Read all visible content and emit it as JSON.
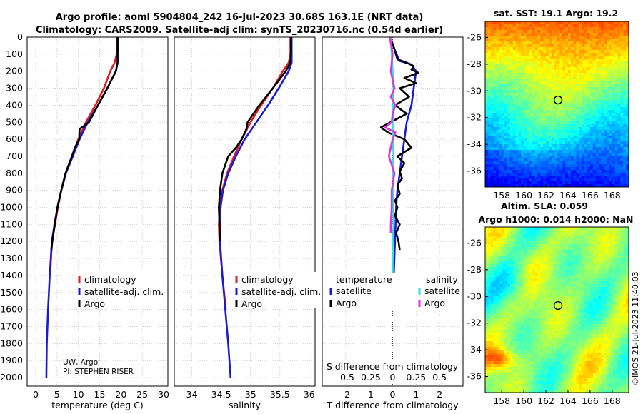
{
  "header": {
    "title_line1": "Argo profile: aoml 5904804_242 16-Jul-2023 30.68S 163.1E (NRT data)",
    "title_line2": "Climatology: CARS2009. Satellite-adj clim: synTS_20230716.nc (0.54d earlier)"
  },
  "credits": {
    "line1": "UW, Argo",
    "line2": "PI: STEPHEN RISER"
  },
  "imos_stamp": "©IMOS 21-Jul-2023 11:40:03",
  "colors": {
    "climatology": "#e41a1c",
    "satellite": "#1a1ad6",
    "argo": "#000000",
    "sal_satellite": "#33e0e0",
    "sal_argo": "#e033e0"
  },
  "chart_data": [
    {
      "type": "line",
      "name": "temperature-profile",
      "xlabel": "temperature (deg C)",
      "xlim": [
        -2,
        31
      ],
      "xticks": [
        0,
        5,
        10,
        15,
        20,
        25,
        30
      ],
      "ylim": [
        2050,
        0
      ],
      "yticks": [
        0,
        100,
        200,
        300,
        400,
        500,
        600,
        700,
        800,
        900,
        1000,
        1100,
        1200,
        1300,
        1400,
        1500,
        1600,
        1700,
        1800,
        1900,
        2000
      ],
      "legend": [
        "climatology",
        "satellite-adj. clim.",
        "Argo"
      ],
      "series": [
        {
          "name": "climatology",
          "x": [
            19.0,
            19.0,
            18.5,
            17.5,
            16.0,
            14.0,
            11.8,
            10.0,
            8.5,
            7.0,
            6.0,
            5.2,
            4.5,
            3.8,
            3.4
          ],
          "y": [
            0,
            100,
            150,
            200,
            300,
            400,
            500,
            600,
            700,
            800,
            900,
            1000,
            1100,
            1200,
            1400
          ]
        },
        {
          "name": "satellite-adj. clim.",
          "x": [
            19.2,
            19.2,
            19.2,
            18.8,
            16.8,
            14.6,
            12.2,
            10.3,
            8.7,
            7.1,
            6.0,
            5.1,
            4.4,
            3.8,
            3.3,
            2.9,
            2.6,
            2.5
          ],
          "y": [
            0,
            100,
            150,
            200,
            300,
            400,
            500,
            600,
            700,
            800,
            900,
            1000,
            1100,
            1200,
            1400,
            1600,
            1800,
            2000
          ]
        },
        {
          "name": "Argo",
          "x": [
            19.2,
            19.2,
            19.2,
            18.8,
            16.8,
            14.6,
            12.5,
            10.3,
            10.2,
            9.2,
            8.5,
            7.0,
            6.0,
            5.1,
            4.5,
            3.9,
            3.7
          ],
          "y": [
            0,
            100,
            150,
            200,
            300,
            400,
            500,
            540,
            600,
            650,
            700,
            800,
            900,
            1000,
            1100,
            1200,
            1250
          ]
        }
      ]
    },
    {
      "type": "line",
      "name": "salinity-profile",
      "xlabel": "salinity",
      "xlim": [
        33.7,
        36.1
      ],
      "xticks": [
        34,
        34.5,
        35,
        35.5,
        36
      ],
      "ylim": [
        2050,
        0
      ],
      "legend": [
        "climatology",
        "satellite-adj. clim.",
        "Argo"
      ],
      "series": [
        {
          "name": "climatology",
          "x": [
            35.68,
            35.68,
            35.65,
            35.55,
            35.38,
            35.18,
            35.0,
            34.85,
            34.72,
            34.6,
            34.52,
            34.48,
            34.46,
            34.47,
            34.52,
            34.58
          ],
          "y": [
            0,
            100,
            150,
            200,
            300,
            400,
            500,
            600,
            700,
            800,
            900,
            1000,
            1100,
            1200,
            1400,
            1600
          ]
        },
        {
          "name": "satellite-adj. clim.",
          "x": [
            35.7,
            35.7,
            35.7,
            35.65,
            35.48,
            35.3,
            35.1,
            34.9,
            34.75,
            34.62,
            34.53,
            34.49,
            34.48,
            34.48,
            34.52,
            34.57,
            34.62,
            34.66
          ],
          "y": [
            0,
            100,
            150,
            200,
            300,
            400,
            500,
            600,
            700,
            800,
            900,
            1000,
            1100,
            1200,
            1400,
            1600,
            1800,
            2000
          ]
        },
        {
          "name": "Argo",
          "x": [
            35.69,
            35.69,
            35.68,
            35.6,
            35.38,
            35.15,
            34.95,
            34.93,
            34.85,
            34.75,
            34.62,
            34.52,
            34.48,
            34.46,
            34.47,
            34.48
          ],
          "y": [
            0,
            100,
            150,
            200,
            300,
            400,
            500,
            540,
            600,
            650,
            700,
            800,
            900,
            1000,
            1100,
            1200
          ]
        }
      ]
    },
    {
      "type": "line",
      "name": "difference-from-climatology",
      "xlabel": "T difference from climatology",
      "xlim": [
        -3,
        3
      ],
      "xticks": [
        -2,
        -1,
        0,
        1,
        2
      ],
      "xlabel_top": "S difference from climatology",
      "xticks_top": [
        -0.5,
        -0.25,
        0,
        0.25,
        0.5
      ],
      "ylim": [
        2050,
        0
      ],
      "legend_titles": [
        "temperature",
        "salinity"
      ],
      "legend": [
        "satellite",
        "Argo",
        "satellite",
        "Argo"
      ],
      "series": [
        {
          "name": "temperature satellite",
          "x": [
            -0.1,
            0.1,
            0.3,
            0.8,
            1.0,
            0.9,
            0.8,
            0.6,
            0.5,
            0.4,
            0.3,
            0.2,
            0.15,
            0.1,
            0.05
          ],
          "y": [
            0,
            80,
            140,
            160,
            200,
            300,
            400,
            500,
            600,
            700,
            800,
            900,
            1000,
            1200,
            1400
          ]
        },
        {
          "name": "temperature Argo",
          "x": [
            -0.1,
            0.1,
            0.2,
            0.6,
            0.9,
            0.8,
            1.1,
            0.5,
            1.0,
            0.3,
            0.7,
            0.1,
            0.6,
            -0.5,
            -0.2,
            0.5,
            0.8,
            0.2,
            0.5,
            0.3,
            0.4,
            0.2,
            0.3,
            0.1,
            0.2,
            0.1,
            0.3,
            0.15,
            0.25,
            0.3
          ],
          "y": [
            0,
            80,
            130,
            150,
            170,
            190,
            210,
            240,
            270,
            300,
            350,
            400,
            450,
            530,
            560,
            600,
            650,
            700,
            740,
            790,
            830,
            870,
            920,
            960,
            1000,
            1050,
            1100,
            1150,
            1200,
            1250
          ]
        },
        {
          "name": "salinity satellite",
          "x": [
            -0.02,
            0.0,
            0.01,
            0.0,
            0.01,
            0.0,
            0.01,
            0.0,
            0.0
          ],
          "y": [
            0,
            200,
            300,
            500,
            700,
            900,
            1100,
            1300,
            1400
          ]
        },
        {
          "name": "salinity Argo",
          "x": [
            -0.03,
            0.0,
            -0.02,
            0.02,
            -0.02,
            0.03,
            0.0,
            -0.01,
            -0.08,
            0.03,
            0.0,
            -0.04,
            0.02,
            -0.01,
            -0.01,
            -0.02,
            -0.02
          ],
          "y": [
            0,
            100,
            200,
            300,
            350,
            400,
            450,
            500,
            530,
            560,
            600,
            700,
            800,
            900,
            1000,
            1100,
            1150
          ]
        }
      ]
    },
    {
      "type": "heatmap",
      "name": "sat-sst-map",
      "title": "sat. SST: 19.1 Argo: 19.2",
      "xlim": [
        156.5,
        169.5
      ],
      "xticks": [
        158,
        160,
        162,
        164,
        166,
        168
      ],
      "ylim": [
        -37.2,
        -24.8
      ],
      "yticks": [
        -26,
        -28,
        -30,
        -32,
        -34,
        -36
      ],
      "float_position": {
        "lon": 163.1,
        "lat": -30.68
      }
    },
    {
      "type": "heatmap",
      "name": "altimetry-sla-map",
      "title_line1": "Altim. SLA: 0.059",
      "title_line2": "Argo h1000: 0.014 h2000: NaN",
      "xlim": [
        156.5,
        169.5
      ],
      "xticks": [
        158,
        160,
        162,
        164,
        166,
        168
      ],
      "ylim": [
        -37.2,
        -24.8
      ],
      "yticks": [
        -26,
        -28,
        -30,
        -32,
        -34,
        -36
      ],
      "float_position": {
        "lon": 163.1,
        "lat": -30.68
      }
    }
  ]
}
